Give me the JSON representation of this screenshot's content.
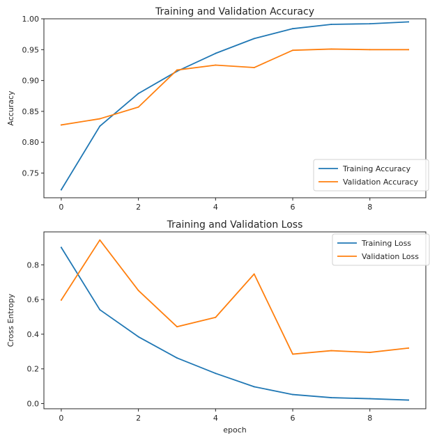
{
  "chart_data": [
    {
      "type": "line",
      "title": "Training and Validation Accuracy",
      "xlabel": "",
      "ylabel": "Accuracy",
      "xlim": [
        -0.45,
        9.45
      ],
      "ylim": [
        0.71,
        1.0
      ],
      "xticks": [
        0,
        2,
        4,
        6,
        8
      ],
      "yticks": [
        0.75,
        0.8,
        0.85,
        0.9,
        0.95,
        1.0
      ],
      "ytick_labels": [
        "0.75",
        "0.80",
        "0.85",
        "0.90",
        "0.95",
        "1.00"
      ],
      "x": [
        0,
        1,
        2,
        3,
        4,
        5,
        6,
        7,
        8,
        9
      ],
      "series": [
        {
          "name": "Training Accuracy",
          "color": "#1f77b4",
          "values": [
            0.723,
            0.826,
            0.879,
            0.915,
            0.944,
            0.968,
            0.984,
            0.991,
            0.992,
            0.995
          ]
        },
        {
          "name": "Validation Accuracy",
          "color": "#ff7f0e",
          "values": [
            0.828,
            0.838,
            0.857,
            0.917,
            0.925,
            0.921,
            0.949,
            0.951,
            0.95,
            0.95
          ]
        }
      ],
      "legend": "lower-right",
      "grid": false
    },
    {
      "type": "line",
      "title": "Training and Validation Loss",
      "xlabel": "epoch",
      "ylabel": "Cross Entropy",
      "xlim": [
        -0.45,
        9.45
      ],
      "ylim": [
        -0.03,
        0.99
      ],
      "xticks": [
        0,
        2,
        4,
        6,
        8
      ],
      "yticks": [
        0.0,
        0.2,
        0.4,
        0.6,
        0.8
      ],
      "ytick_labels": [
        "0.0",
        "0.2",
        "0.4",
        "0.6",
        "0.8"
      ],
      "x": [
        0,
        1,
        2,
        3,
        4,
        5,
        6,
        7,
        8,
        9
      ],
      "series": [
        {
          "name": "Training Loss",
          "color": "#1f77b4",
          "values": [
            0.9,
            0.541,
            0.385,
            0.263,
            0.174,
            0.097,
            0.052,
            0.034,
            0.028,
            0.02
          ]
        },
        {
          "name": "Validation Loss",
          "color": "#ff7f0e",
          "values": [
            0.597,
            0.943,
            0.652,
            0.443,
            0.497,
            0.747,
            0.285,
            0.305,
            0.295,
            0.32
          ]
        }
      ],
      "legend": "upper-right",
      "grid": false
    }
  ]
}
